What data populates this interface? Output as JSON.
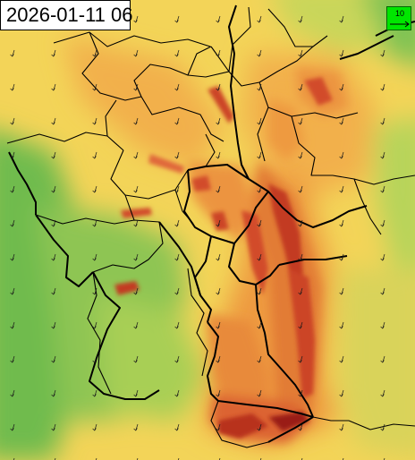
{
  "map": {
    "timestamp": "2026-01-11 06",
    "legend": {
      "wind_reference": "10"
    },
    "colors": {
      "green_low": "#6fbb4e",
      "green_mid": "#a8cf55",
      "yellow": "#f3d458",
      "orange": "#ee9a40",
      "red": "#d84a2a",
      "dark_red": "#9a1e14",
      "border": "#000000",
      "legend_fill": "#00e600"
    },
    "wind_direction": "south-southwest arrows (flow toward SSW)"
  }
}
